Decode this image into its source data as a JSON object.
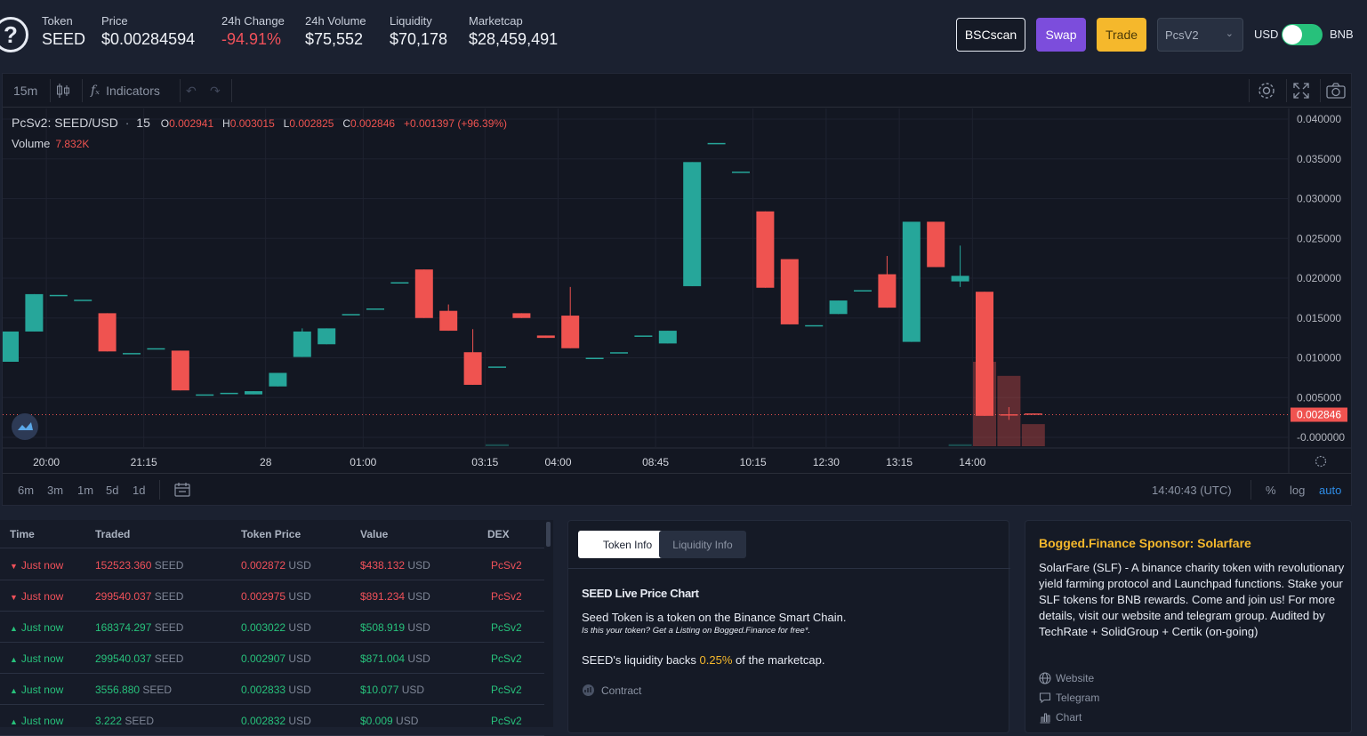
{
  "header": {
    "token": {
      "label": "Token",
      "value": "SEED"
    },
    "price": {
      "label": "Price",
      "value": "$0.00284594"
    },
    "change": {
      "label": "24h Change",
      "value": "-94.91%"
    },
    "volume": {
      "label": "24h Volume",
      "value": "$75,552"
    },
    "liquidity": {
      "label": "Liquidity",
      "value": "$70,178"
    },
    "marketcap": {
      "label": "Marketcap",
      "value": "$28,459,491"
    },
    "buttons": {
      "bscscan": "BSCscan",
      "swap": "Swap",
      "trade": "Trade"
    },
    "dex_select": "PcsV2",
    "currency_left": "USD",
    "currency_right": "BNB",
    "toggle_on": true
  },
  "chart": {
    "toolbar": {
      "interval": "15m",
      "indicators": "Indicators"
    },
    "legend": {
      "symbol": "PcSv2: SEED/USD",
      "interval": "15",
      "o_label": "O",
      "o": "0.002941",
      "h_label": "H",
      "h": "0.003015",
      "l_label": "L",
      "l": "0.002825",
      "c_label": "C",
      "c": "0.002846",
      "change": "+0.001397 (+96.39%)",
      "volume_label": "Volume",
      "volume": "7.832K"
    },
    "bottom": {
      "ranges": [
        "6m",
        "3m",
        "1m",
        "5d",
        "1d"
      ],
      "clock": "14:40:43 (UTC)",
      "pct": "%",
      "log": "log",
      "auto": "auto"
    },
    "current_price_label": "0.002846"
  },
  "chart_data": {
    "type": "candlestick",
    "y_ticks": [
      "0.040000",
      "0.035000",
      "0.030000",
      "0.025000",
      "0.020000",
      "0.015000",
      "0.010000",
      "0.005000",
      "-0.000000"
    ],
    "ylim": [
      0,
      0.04
    ],
    "x_ticks": [
      {
        "label": "20:00",
        "index": 1.5
      },
      {
        "label": "21:15",
        "index": 5.5
      },
      {
        "label": "28",
        "index": 10.5
      },
      {
        "label": "01:00",
        "index": 14.5
      },
      {
        "label": "03:15",
        "index": 19.5
      },
      {
        "label": "04:00",
        "index": 22.5
      },
      {
        "label": "08:45",
        "index": 26.5
      },
      {
        "label": "10:15",
        "index": 30.5
      },
      {
        "label": "12:30",
        "index": 33.5
      },
      {
        "label": "13:15",
        "index": 36.5
      },
      {
        "label": "14:00",
        "index": 39.5
      }
    ],
    "candles": [
      {
        "o": 0.0095,
        "c": 0.0133,
        "h": 0.0133,
        "l": 0.0095
      },
      {
        "o": 0.0133,
        "c": 0.018,
        "h": 0.018,
        "l": 0.0133
      },
      {
        "o": 0.0179,
        "c": 0.0179,
        "h": 0.0179,
        "l": 0.0179
      },
      {
        "o": 0.0173,
        "c": 0.0173,
        "h": 0.0173,
        "l": 0.0173
      },
      {
        "o": 0.0156,
        "c": 0.0108,
        "h": 0.0156,
        "l": 0.0108
      },
      {
        "o": 0.0106,
        "c": 0.0106,
        "h": 0.0106,
        "l": 0.0106
      },
      {
        "o": 0.0112,
        "c": 0.0112,
        "h": 0.0112,
        "l": 0.0112
      },
      {
        "o": 0.0109,
        "c": 0.0059,
        "h": 0.0109,
        "l": 0.0059
      },
      {
        "o": 0.0054,
        "c": 0.0054,
        "h": 0.0054,
        "l": 0.0054
      },
      {
        "o": 0.0056,
        "c": 0.0056,
        "h": 0.0056,
        "l": 0.0056
      },
      {
        "o": 0.0054,
        "c": 0.0058,
        "h": 0.0058,
        "l": 0.0054
      },
      {
        "o": 0.0064,
        "c": 0.0081,
        "h": 0.0081,
        "l": 0.0064
      },
      {
        "o": 0.0101,
        "c": 0.0133,
        "h": 0.0137,
        "l": 0.0101
      },
      {
        "o": 0.0117,
        "c": 0.0137,
        "h": 0.0137,
        "l": 0.0117
      },
      {
        "o": 0.0155,
        "c": 0.0155,
        "h": 0.0155,
        "l": 0.0155
      },
      {
        "o": 0.0162,
        "c": 0.0162,
        "h": 0.0162,
        "l": 0.0162
      },
      {
        "o": 0.0195,
        "c": 0.0195,
        "h": 0.0195,
        "l": 0.0195
      },
      {
        "o": 0.0211,
        "c": 0.015,
        "h": 0.0211,
        "l": 0.015
      },
      {
        "o": 0.0159,
        "c": 0.0134,
        "h": 0.0167,
        "l": 0.0134
      },
      {
        "o": 0.0107,
        "c": 0.0066,
        "h": 0.0136,
        "l": 0.0066
      },
      {
        "o": 0.0089,
        "c": 0.0089,
        "h": 0.0089,
        "l": 0.0089
      },
      {
        "o": 0.0156,
        "c": 0.015,
        "h": 0.0156,
        "l": 0.015
      },
      {
        "o": 0.0128,
        "c": 0.0125,
        "h": 0.0128,
        "l": 0.0125
      },
      {
        "o": 0.0153,
        "c": 0.0112,
        "h": 0.0189,
        "l": 0.0112
      },
      {
        "o": 0.01,
        "c": 0.01,
        "h": 0.01,
        "l": 0.01
      },
      {
        "o": 0.0107,
        "c": 0.0107,
        "h": 0.0107,
        "l": 0.0107
      },
      {
        "o": 0.0128,
        "c": 0.0128,
        "h": 0.0128,
        "l": 0.0128
      },
      {
        "o": 0.0118,
        "c": 0.0134,
        "h": 0.0134,
        "l": 0.0118
      },
      {
        "o": 0.019,
        "c": 0.0346,
        "h": 0.0346,
        "l": 0.019
      },
      {
        "o": 0.037,
        "c": 0.037,
        "h": 0.037,
        "l": 0.037
      },
      {
        "o": 0.0334,
        "c": 0.0334,
        "h": 0.0334,
        "l": 0.0334
      },
      {
        "o": 0.0284,
        "c": 0.0188,
        "h": 0.0284,
        "l": 0.0188
      },
      {
        "o": 0.0224,
        "c": 0.0142,
        "h": 0.0224,
        "l": 0.0142
      },
      {
        "o": 0.0141,
        "c": 0.0141,
        "h": 0.0141,
        "l": 0.0141
      },
      {
        "o": 0.0155,
        "c": 0.0172,
        "h": 0.0172,
        "l": 0.0155
      },
      {
        "o": 0.0185,
        "c": 0.0185,
        "h": 0.0185,
        "l": 0.0185
      },
      {
        "o": 0.0205,
        "c": 0.0163,
        "h": 0.0228,
        "l": 0.0163
      },
      {
        "o": 0.012,
        "c": 0.0271,
        "h": 0.0271,
        "l": 0.012
      },
      {
        "o": 0.0271,
        "c": 0.0214,
        "h": 0.0271,
        "l": 0.0214
      },
      {
        "o": 0.0196,
        "c": 0.0203,
        "h": 0.0241,
        "l": 0.0189
      },
      {
        "o": 0.0183,
        "c": 0.0027,
        "h": 0.0183,
        "l": 0.0027
      },
      {
        "o": 0.0029,
        "c": 0.0028,
        "h": 0.0038,
        "l": 0.0022
      },
      {
        "o": 0.003,
        "c": 0.0029,
        "h": 0.003,
        "l": 0.0029
      }
    ],
    "volume": [
      0.0,
      0.0,
      0.0,
      0.0,
      0.0,
      0.0,
      0.0,
      0.0,
      0.0,
      0.0,
      0.0,
      0.0,
      0.0,
      0.0,
      0.0,
      0.0,
      0.0,
      0.0,
      0.0,
      0.0,
      0.1,
      0.0,
      0.0,
      0.0,
      0.0,
      0.0,
      0.0,
      0.0,
      0.0,
      0.0,
      0.0,
      0.0,
      0.0,
      0.0,
      0.0,
      0.0,
      0.0,
      0.0,
      0.0,
      0.1,
      4.2,
      3.5,
      1.1
    ],
    "colors": {
      "up": "#26a69a",
      "down": "#ef5350"
    }
  },
  "trades": {
    "columns": [
      "Time",
      "Traded",
      "Token Price",
      "Value",
      "DEX"
    ],
    "rows": [
      {
        "side": "sell",
        "time": "Just now",
        "amount": "152523.360",
        "token": "SEED",
        "price": "0.002872",
        "price_unit": "USD",
        "value": "$438.132",
        "value_unit": "USD",
        "dex": "PcSv2"
      },
      {
        "side": "sell",
        "time": "Just now",
        "amount": "299540.037",
        "token": "SEED",
        "price": "0.002975",
        "price_unit": "USD",
        "value": "$891.234",
        "value_unit": "USD",
        "dex": "PcSv2"
      },
      {
        "side": "buy",
        "time": "Just now",
        "amount": "168374.297",
        "token": "SEED",
        "price": "0.003022",
        "price_unit": "USD",
        "value": "$508.919",
        "value_unit": "USD",
        "dex": "PcSv2"
      },
      {
        "side": "buy",
        "time": "Just now",
        "amount": "299540.037",
        "token": "SEED",
        "price": "0.002907",
        "price_unit": "USD",
        "value": "$871.004",
        "value_unit": "USD",
        "dex": "PcSv2"
      },
      {
        "side": "buy",
        "time": "Just now",
        "amount": "3556.880",
        "token": "SEED",
        "price": "0.002833",
        "price_unit": "USD",
        "value": "$10.077",
        "value_unit": "USD",
        "dex": "PcSv2"
      },
      {
        "side": "buy",
        "time": "Just now",
        "amount": "3.222",
        "token": "SEED",
        "price": "0.002832",
        "price_unit": "USD",
        "value": "$0.009",
        "value_unit": "USD",
        "dex": "PcSv2"
      }
    ]
  },
  "token_info": {
    "tabs": [
      "Token Info",
      "Liquidity Info"
    ],
    "title": "SEED Live Price Chart",
    "desc": "Seed Token is a token on the Binance Smart Chain.",
    "note": "Is this your token? Get a Listing on Bogged.Finance for free*.",
    "liq_pre": "SEED's liquidity backs ",
    "liq_pct": "0.25%",
    "liq_post": " of the marketcap.",
    "contract": "Contract"
  },
  "sponsor": {
    "title": "Bogged.Finance Sponsor: Solarfare",
    "text": "SolarFare (SLF) - A binance charity token with revolutionary yield farming protocol and Launchpad functions. Stake your SLF tokens for BNB rewards. Come and join us! For more details, visit our website and telegram group. Audited by TechRate + SolidGroup + Certik (on-going)",
    "links": [
      "Website",
      "Telegram",
      "Chart"
    ]
  }
}
